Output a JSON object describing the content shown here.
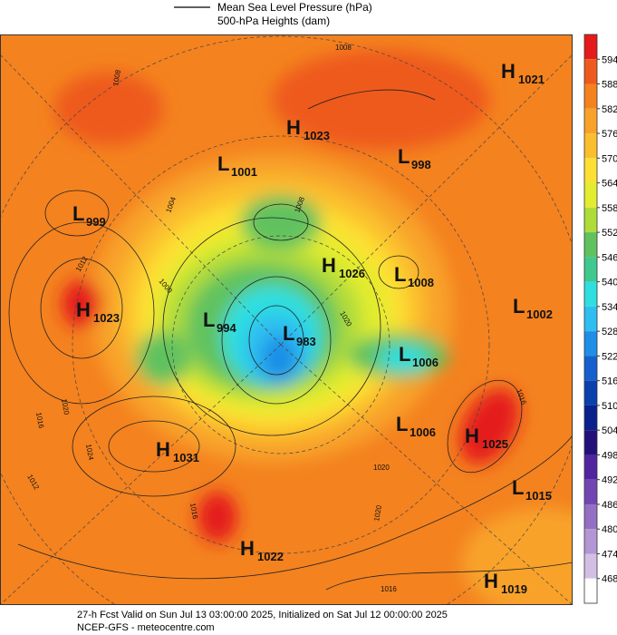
{
  "header": {
    "legend_items": [
      "Mean Sea Level Pressure (hPa)",
      "500-hPa Heights (dam)"
    ]
  },
  "colorbar": {
    "labels": [
      594,
      588,
      582,
      576,
      570,
      564,
      558,
      552,
      546,
      540,
      534,
      528,
      522,
      516,
      510,
      504,
      498,
      492,
      486,
      480,
      474,
      468
    ],
    "colors": [
      "#e41a1c",
      "#ee5a1d",
      "#f4821f",
      "#f8a229",
      "#fbbf2e",
      "#fde033",
      "#e3ec2e",
      "#b0dc3a",
      "#60c25e",
      "#3fc98f",
      "#2fdfe0",
      "#2fbef0",
      "#1f8ee6",
      "#1560cc",
      "#0a40ac",
      "#0a208c",
      "#24107a",
      "#5224a0",
      "#7246b2",
      "#9370c4",
      "#b396d4",
      "#d3bfe4",
      "#ffffff"
    ]
  },
  "centers": [
    {
      "type": "H",
      "value": 1021
    },
    {
      "type": "H",
      "value": 1023
    },
    {
      "type": "L",
      "value": 1001
    },
    {
      "type": "L",
      "value": 998
    },
    {
      "type": "L",
      "value": 999
    },
    {
      "type": "H",
      "value": 1026
    },
    {
      "type": "L",
      "value": 1008
    },
    {
      "type": "L",
      "value": 1002
    },
    {
      "type": "H",
      "value": 1023
    },
    {
      "type": "L",
      "value": 994
    },
    {
      "type": "L",
      "value": 983
    },
    {
      "type": "L",
      "value": 1006
    },
    {
      "type": "L",
      "value": 1006
    },
    {
      "type": "H",
      "value": 1025
    },
    {
      "type": "H",
      "value": 1031
    },
    {
      "type": "L",
      "value": 1015
    },
    {
      "type": "H",
      "value": 1022
    },
    {
      "type": "H",
      "value": 1019
    }
  ],
  "contour_labels": [
    "1008",
    "1008",
    "1004",
    "1008",
    "1012",
    "1000",
    "1020",
    "1016",
    "1020",
    "1024",
    "1016",
    "1020",
    "1020",
    "1016",
    "1012",
    "1016"
  ],
  "footer": {
    "line1": "27-h Fcst Valid on Sun Jul 13 03:00:00 2025, Initialized on Sat Jul 12 00:00:00 2025",
    "line2": "NCEP-GFS  - meteocentre.com"
  }
}
